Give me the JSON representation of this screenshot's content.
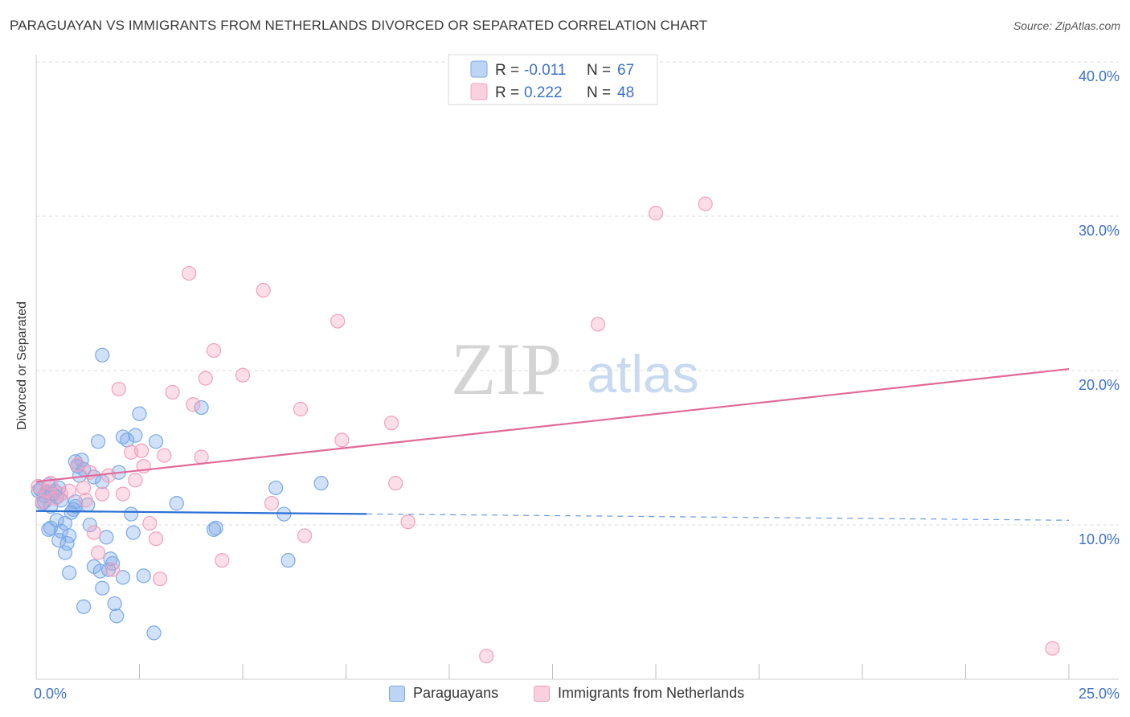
{
  "header": {
    "title": "PARAGUAYAN VS IMMIGRANTS FROM NETHERLANDS DIVORCED OR SEPARATED CORRELATION CHART",
    "source": "Source: ZipAtlas.com"
  },
  "watermark": {
    "zip": "ZIP",
    "atlas": "atlas"
  },
  "chart_data": {
    "type": "scatter",
    "title": "PARAGUAYAN VS IMMIGRANTS FROM NETHERLANDS DIVORCED OR SEPARATED CORRELATION CHART",
    "xlabel": "",
    "ylabel": "Divorced or Separated",
    "xlim": [
      0,
      25
    ],
    "ylim": [
      0,
      40
    ],
    "x_tick_labels": [
      "0.0%",
      "25.0%"
    ],
    "y_ticks": [
      10,
      20,
      30,
      40
    ],
    "y_tick_labels": [
      "10.0%",
      "20.0%",
      "30.0%",
      "40.0%"
    ],
    "grid": true,
    "legend_placement": "top-center",
    "series": [
      {
        "name": "Paraguayans",
        "color": "#7aaae8",
        "line_color": "#2a6fd4",
        "stats": {
          "r_label": "R =",
          "r": "-0.011",
          "n_label": "N =",
          "n": "67"
        },
        "trend": {
          "x": [
            0,
            25
          ],
          "y": [
            10.9,
            10.3
          ],
          "solid_until_x": 8
        },
        "points": [
          [
            0.1,
            12.3
          ],
          [
            0.15,
            11.4
          ],
          [
            0.2,
            11.9
          ],
          [
            0.25,
            12.1
          ],
          [
            0.3,
            12.6
          ],
          [
            0.35,
            11.2
          ],
          [
            0.4,
            12.0
          ],
          [
            0.45,
            12.2
          ],
          [
            0.5,
            11.8
          ],
          [
            0.55,
            12.4
          ],
          [
            0.6,
            11.6
          ],
          [
            0.3,
            9.7
          ],
          [
            0.35,
            9.8
          ],
          [
            0.5,
            10.3
          ],
          [
            0.55,
            9.0
          ],
          [
            0.6,
            9.6
          ],
          [
            0.7,
            10.1
          ],
          [
            0.75,
            8.8
          ],
          [
            0.8,
            9.3
          ],
          [
            0.9,
            11.0
          ],
          [
            0.95,
            11.2
          ],
          [
            1.0,
            13.8
          ],
          [
            1.05,
            13.2
          ],
          [
            1.1,
            14.2
          ],
          [
            1.15,
            13.6
          ],
          [
            0.7,
            8.2
          ],
          [
            0.8,
            6.9
          ],
          [
            1.3,
            10.0
          ],
          [
            1.4,
            13.1
          ],
          [
            1.5,
            15.4
          ],
          [
            1.6,
            12.8
          ],
          [
            1.7,
            9.2
          ],
          [
            1.8,
            7.8
          ],
          [
            1.85,
            7.5
          ],
          [
            1.9,
            4.9
          ],
          [
            1.95,
            4.1
          ],
          [
            2.0,
            13.4
          ],
          [
            2.1,
            15.7
          ],
          [
            2.2,
            15.5
          ],
          [
            2.4,
            15.8
          ],
          [
            2.5,
            17.2
          ],
          [
            2.6,
            6.7
          ],
          [
            2.3,
            10.7
          ],
          [
            2.35,
            9.5
          ],
          [
            1.6,
            5.9
          ],
          [
            1.55,
            7.0
          ],
          [
            1.75,
            7.1
          ],
          [
            2.1,
            6.6
          ],
          [
            2.9,
            15.4
          ],
          [
            3.4,
            11.4
          ],
          [
            4.0,
            17.6
          ],
          [
            4.3,
            9.7
          ],
          [
            4.35,
            9.8
          ],
          [
            5.8,
            12.4
          ],
          [
            6.0,
            10.7
          ],
          [
            6.1,
            7.7
          ],
          [
            6.9,
            12.7
          ],
          [
            1.6,
            21.0
          ],
          [
            2.85,
            3.0
          ],
          [
            1.15,
            4.7
          ],
          [
            0.2,
            11.5
          ],
          [
            0.95,
            11.5
          ],
          [
            1.25,
            11.3
          ],
          [
            1.4,
            7.3
          ],
          [
            0.85,
            10.8
          ],
          [
            0.95,
            14.1
          ],
          [
            0.05,
            12.2
          ]
        ]
      },
      {
        "name": "Immigrants from Netherlands",
        "color": "#f4a0bd",
        "line_color": "#e0699a",
        "stats": {
          "r_label": "R =",
          "r": "0.222",
          "n_label": "N =",
          "n": "48"
        },
        "trend": {
          "x": [
            0,
            25
          ],
          "y": [
            12.8,
            20.1
          ],
          "solid_until_x": 25
        },
        "points": [
          [
            0.05,
            12.5
          ],
          [
            0.15,
            11.5
          ],
          [
            0.25,
            12.2
          ],
          [
            0.35,
            12.7
          ],
          [
            0.45,
            11.7
          ],
          [
            0.6,
            12.0
          ],
          [
            0.8,
            12.2
          ],
          [
            1.0,
            13.9
          ],
          [
            1.2,
            11.6
          ],
          [
            1.15,
            12.4
          ],
          [
            1.3,
            13.4
          ],
          [
            1.4,
            9.5
          ],
          [
            1.5,
            8.2
          ],
          [
            1.6,
            12.0
          ],
          [
            1.75,
            13.2
          ],
          [
            1.85,
            7.1
          ],
          [
            2.0,
            18.8
          ],
          [
            2.1,
            12.0
          ],
          [
            2.3,
            14.7
          ],
          [
            2.4,
            12.9
          ],
          [
            2.55,
            14.8
          ],
          [
            2.6,
            13.8
          ],
          [
            2.75,
            10.1
          ],
          [
            2.9,
            9.1
          ],
          [
            3.0,
            6.5
          ],
          [
            3.1,
            14.5
          ],
          [
            3.3,
            18.6
          ],
          [
            3.7,
            26.3
          ],
          [
            3.8,
            17.8
          ],
          [
            4.0,
            14.4
          ],
          [
            4.1,
            19.5
          ],
          [
            4.3,
            21.3
          ],
          [
            4.5,
            7.7
          ],
          [
            5.0,
            19.7
          ],
          [
            5.5,
            25.2
          ],
          [
            5.7,
            11.4
          ],
          [
            6.4,
            17.5
          ],
          [
            6.5,
            9.3
          ],
          [
            7.3,
            23.2
          ],
          [
            7.4,
            15.5
          ],
          [
            8.6,
            16.6
          ],
          [
            8.7,
            12.7
          ],
          [
            9.0,
            10.2
          ],
          [
            10.9,
            1.5
          ],
          [
            13.6,
            23.0
          ],
          [
            15.0,
            30.2
          ],
          [
            16.2,
            30.8
          ],
          [
            24.6,
            2.0
          ]
        ]
      }
    ]
  }
}
